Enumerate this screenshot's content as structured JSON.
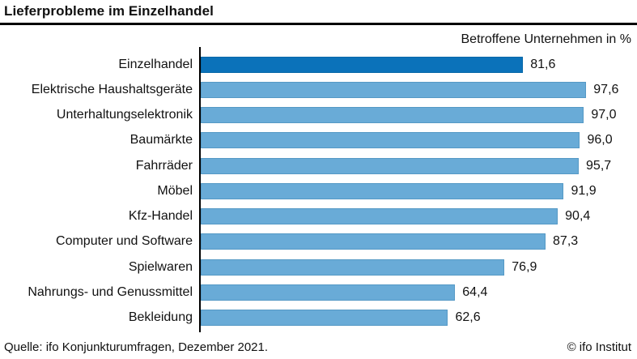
{
  "header": {
    "title": "Lieferprobleme im Einzelhandel"
  },
  "subtitle": "Betroffene Unternehmen in %",
  "chart_data": {
    "type": "bar",
    "orientation": "horizontal",
    "title": "Lieferprobleme im Einzelhandel",
    "subtitle": "Betroffene Unternehmen in %",
    "categories": [
      "Einzelhandel",
      "Elektrische Haushaltsgeräte",
      "Unterhaltungselektronik",
      "Baumärkte",
      "Fahrräder",
      "Möbel",
      "Kfz-Handel",
      "Computer und Software",
      "Spielwaren",
      "Nahrungs- und Genussmittel",
      "Bekleidung"
    ],
    "values": [
      81.6,
      97.6,
      97.0,
      96.0,
      95.7,
      91.9,
      90.4,
      87.3,
      76.9,
      64.4,
      62.6
    ],
    "value_labels": [
      "81,6",
      "97,6",
      "97,0",
      "96,0",
      "95,7",
      "91,9",
      "90,4",
      "87,3",
      "76,9",
      "64,4",
      "62,6"
    ],
    "highlight_index": 0,
    "xlim": [
      0,
      100
    ],
    "grid": false,
    "legend": false,
    "colors": {
      "bar_fill": "#69abd7",
      "bar_border": "#5599c5",
      "highlight_fill": "#0b72ba",
      "highlight_border": "#0567a8",
      "axis": "#000000"
    }
  },
  "footer": {
    "source": "Quelle: ifo Konjunkturumfragen, Dezember 2021.",
    "copyright": "© ifo Institut"
  }
}
